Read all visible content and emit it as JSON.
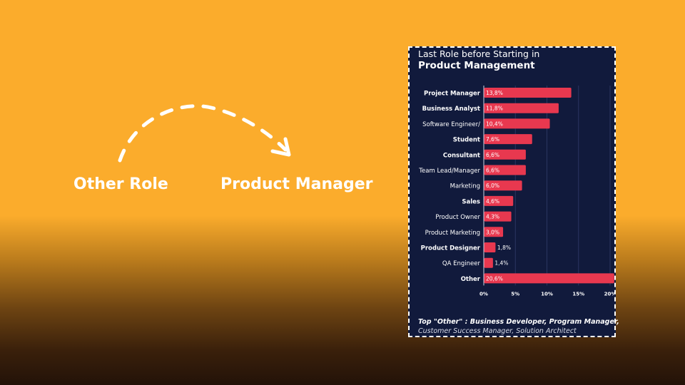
{
  "flow": {
    "from_label": "Other Role",
    "to_label": "Product Manager"
  },
  "colors": {
    "background": "#fbac2c",
    "card": "#111a3c",
    "bar": "#e8384f"
  },
  "chart_data": {
    "type": "bar",
    "orientation": "horizontal",
    "title": "Last Role before Starting in",
    "subtitle": "Product Management",
    "categories": [
      "Project Manager",
      "Business Analyst",
      "Software Engineer/",
      "Student",
      "Consultant",
      "Team Lead/Manager",
      "Marketing",
      "Sales",
      "Product Owner",
      "Product Marketing",
      "Product Designer",
      "QA Engineer",
      "Other"
    ],
    "bold_categories": [
      "Project Manager",
      "Business Analyst",
      "Student",
      "Consultant",
      "Sales",
      "Product Designer",
      "Other"
    ],
    "values": [
      13.8,
      11.8,
      10.4,
      7.6,
      6.6,
      6.6,
      6.0,
      4.6,
      4.3,
      3.0,
      1.8,
      1.4,
      20.6
    ],
    "value_labels": [
      "13,8%",
      "11,8%",
      "10,4%",
      "7,6%",
      "6,6%",
      "6,6%",
      "6,0%",
      "4,6%",
      "4,3%",
      "3,0%",
      "1,8%",
      "1,4%",
      "20,6%"
    ],
    "xlim": [
      0,
      20
    ],
    "xticks": [
      0,
      5,
      10,
      15,
      20
    ],
    "xtick_labels": [
      "0%",
      "5%",
      "10%",
      "15%",
      "20%"
    ],
    "xlabel": "",
    "ylabel": "",
    "grid": true
  },
  "footnote": {
    "line1": "Top \"Other\" : Business Developer, Program Manager,",
    "line2": "Customer Success Manager, Solution Architect"
  }
}
